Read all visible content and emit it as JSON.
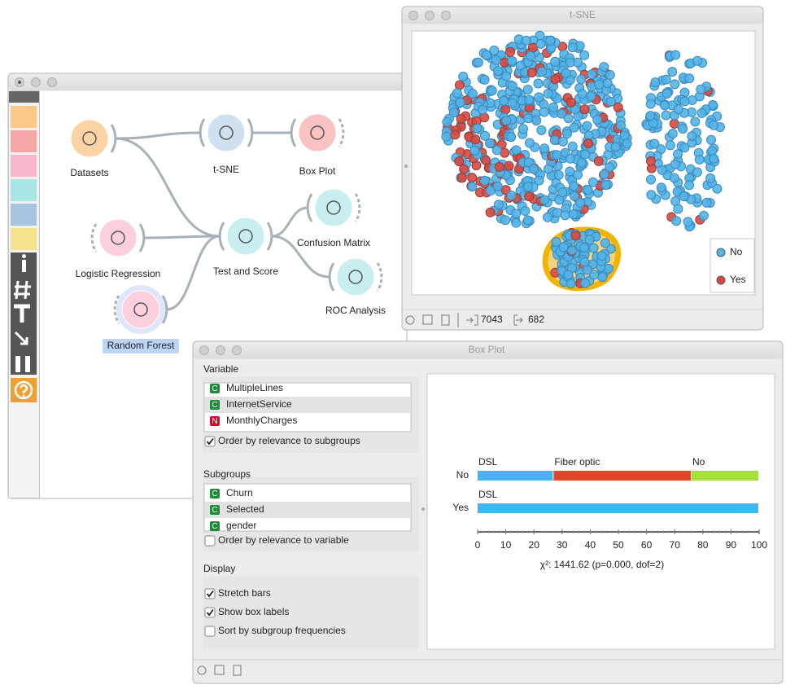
{
  "canvas": {
    "nodes": [
      {
        "label": "Datasets",
        "color": "#fbd3a4"
      },
      {
        "label": "t-SNE",
        "color": "#cfe0ee"
      },
      {
        "label": "Box Plot",
        "color": "#fbc2c2"
      },
      {
        "label": "Logistic Regression",
        "color": "#fbd0dc"
      },
      {
        "label": "Test and Score",
        "color": "#c8eef0"
      },
      {
        "label": "Confusion Matrix",
        "color": "#c8eef0"
      },
      {
        "label": "ROC Analysis",
        "color": "#c8eef0"
      },
      {
        "label": "Random Forest",
        "color": "#fbd0dc",
        "selected": true
      }
    ]
  },
  "tsne": {
    "title": "t-SNE",
    "legend": [
      {
        "name": "No",
        "color": "#52b4e8"
      },
      {
        "name": "Yes",
        "color": "#d9483e"
      }
    ],
    "status": {
      "input": 7043,
      "output": 682
    }
  },
  "box_plot": {
    "title": "Box Plot",
    "variable": {
      "heading": "Variable",
      "items": [
        {
          "badge": "C",
          "name": "MultipleLines"
        },
        {
          "badge": "C",
          "name": "InternetService",
          "selected": true
        },
        {
          "badge": "N",
          "name": "MonthlyCharges"
        }
      ],
      "option": {
        "label": "Order by relevance to subgroups",
        "checked": true
      }
    },
    "subgroups": {
      "heading": "Subgroups",
      "items": [
        {
          "badge": "C",
          "name": "Churn"
        },
        {
          "badge": "C",
          "name": "Selected",
          "selected": true
        },
        {
          "badge": "C",
          "name": "gender"
        }
      ],
      "option": {
        "label": "Order by relevance to variable",
        "checked": false
      }
    },
    "display": {
      "heading": "Display",
      "options": [
        {
          "label": "Stretch bars",
          "checked": true
        },
        {
          "label": "Show box labels",
          "checked": true
        },
        {
          "label": "Sort by subgroup frequencies",
          "checked": false
        }
      ]
    },
    "chart": {
      "rows": [
        {
          "name": "No",
          "segments": [
            {
              "label": "DSL",
              "value": 27,
              "color": "#3fb6f2"
            },
            {
              "label": "Fiber optic",
              "value": 49,
              "color": "#e9442b"
            },
            {
              "label": "No",
              "value": 24,
              "color": "#a4e32d"
            }
          ]
        },
        {
          "name": "Yes",
          "segments": [
            {
              "label": "DSL",
              "value": 100,
              "color": "#3fb6f2"
            }
          ]
        }
      ],
      "xlim": [
        0,
        100
      ],
      "xticks": [
        0,
        10,
        20,
        30,
        40,
        50,
        60,
        70,
        80,
        90,
        100
      ],
      "stat": "χ²: 1441.62 (p=0.000, dof=2)"
    }
  }
}
